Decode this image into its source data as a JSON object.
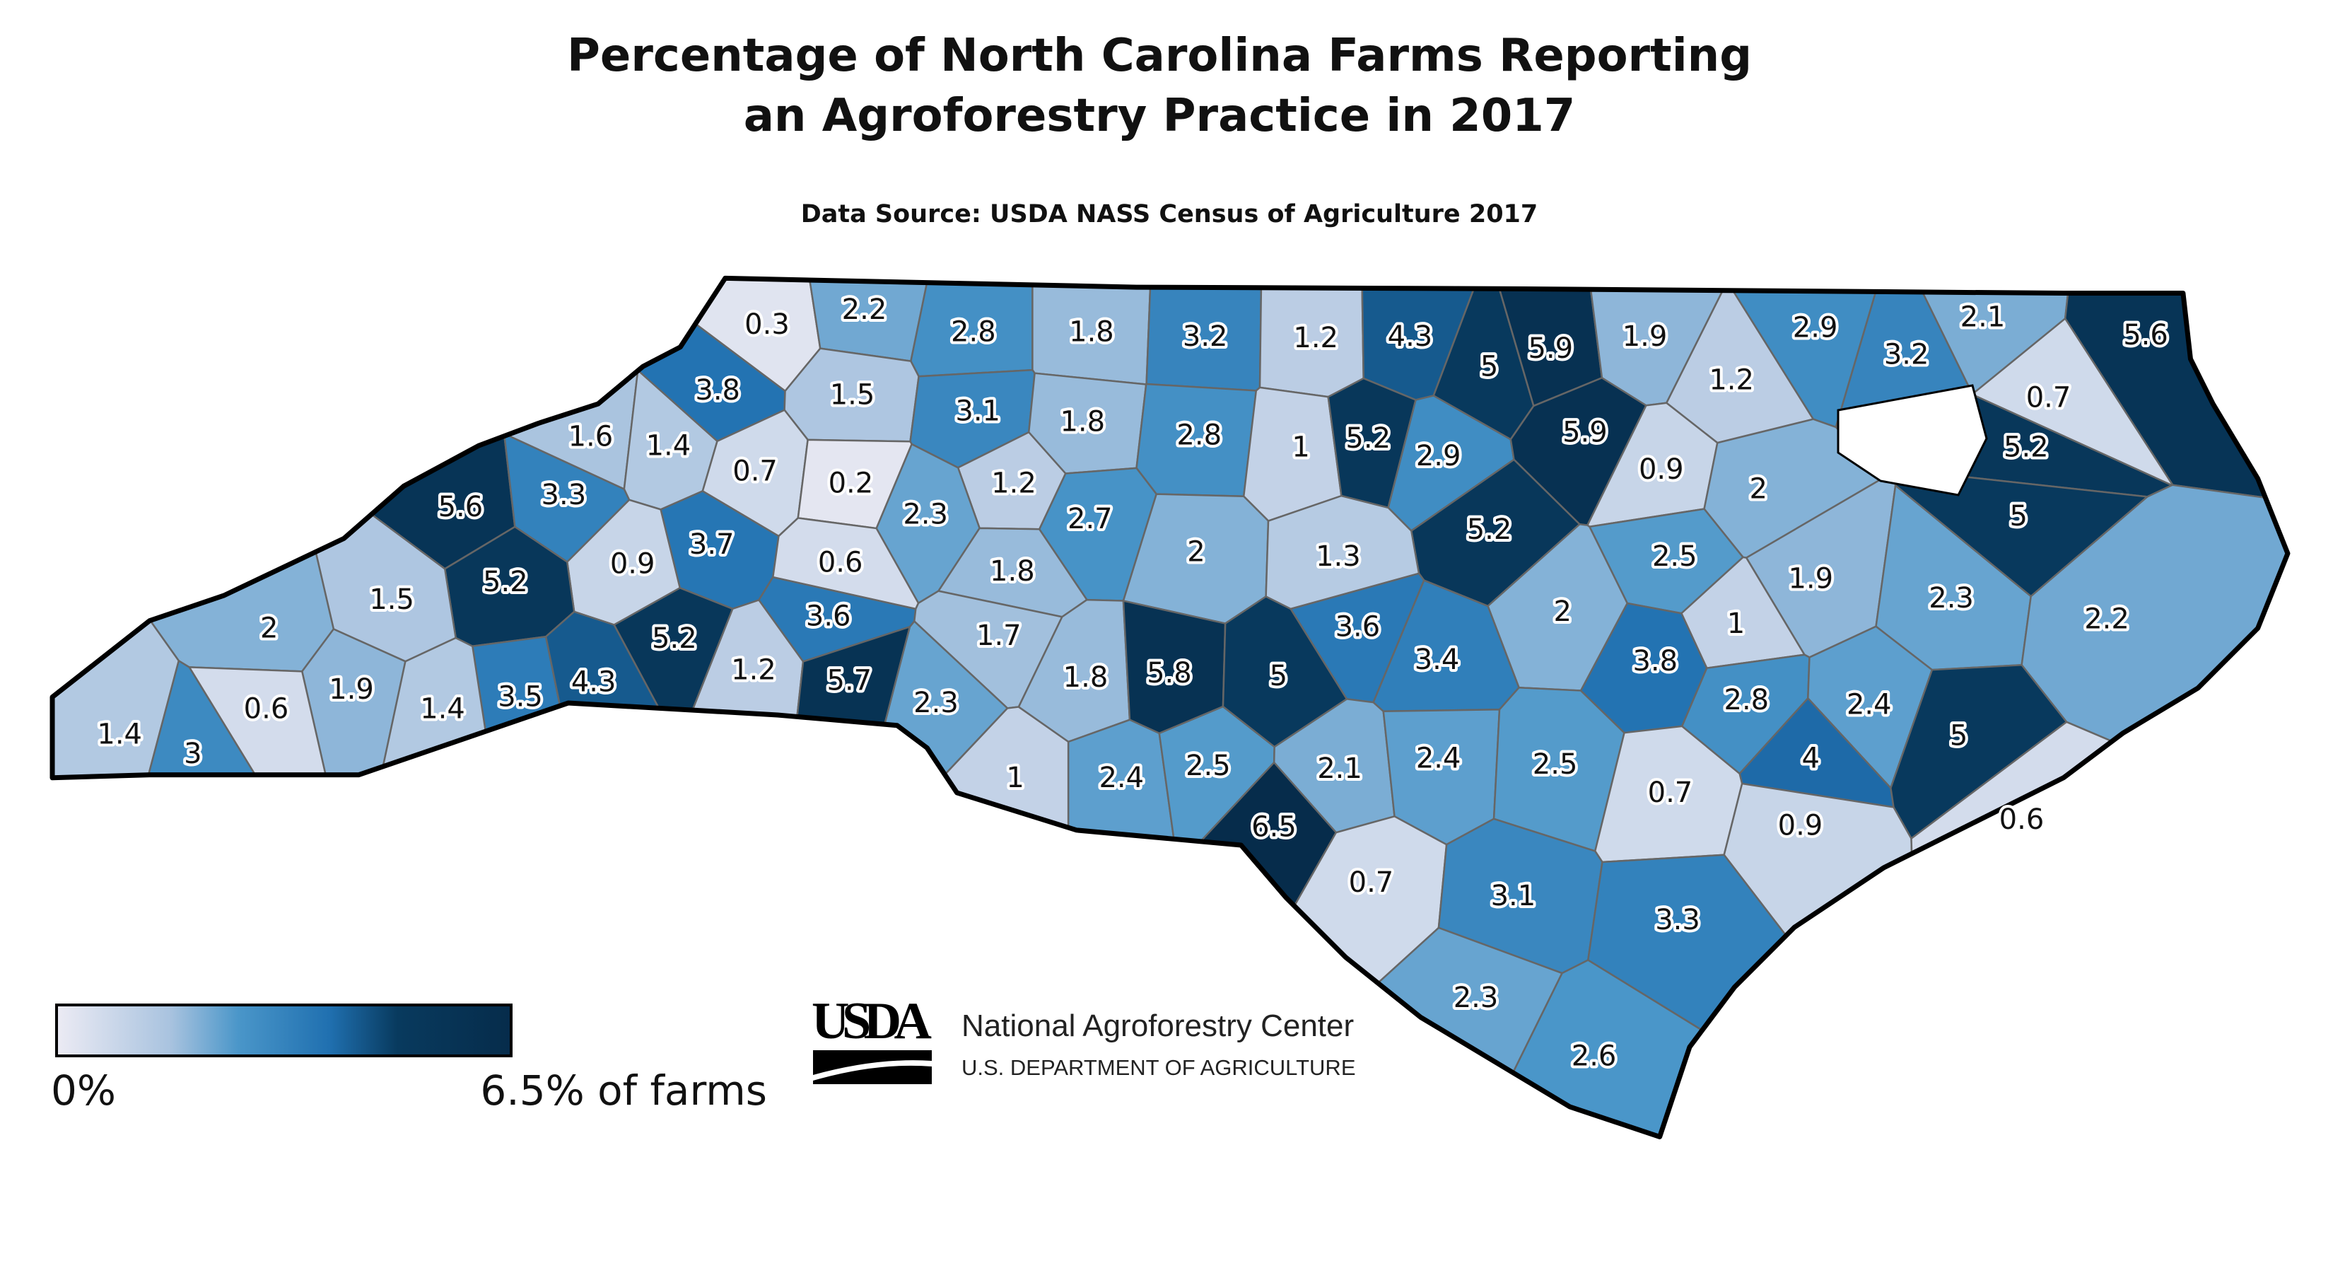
{
  "title_lines": [
    "Percentage of North Carolina Farms Reporting",
    "an Agroforestry Practice in 2017"
  ],
  "source": "Data Source: USDA NASS Census of Agriculture 2017",
  "legend": {
    "min": {
      "value": 0,
      "label": "0%"
    },
    "max": {
      "value": 6.5,
      "label": "6.5% of farms"
    }
  },
  "logo": {
    "mark": "USDA",
    "name": "National Agroforestry Center",
    "department": "U.S. DEPARTMENT OF AGRICULTURE"
  },
  "counties": {
    "values": [
      0.3,
      2.2,
      2.8,
      1.8,
      3.2,
      1.2,
      4.3,
      5,
      5.9,
      1.9,
      1.2,
      2.9,
      2.1,
      3.2,
      5.6,
      0.7,
      5.2,
      3.8,
      1.5,
      3.1,
      1.8,
      2.8,
      1,
      5.2,
      2.9,
      5.9,
      0.9,
      1.6,
      1.4,
      0.7,
      0.2,
      1.2,
      2,
      5.6,
      3.3,
      2.3,
      2.7,
      5.2,
      5,
      0.9,
      3.7,
      0.6,
      1.8,
      2,
      1.3,
      2.5,
      1.9,
      5.2,
      1.5,
      2,
      3.6,
      1.7,
      3.6,
      2,
      1,
      2.3,
      2.2,
      5.2,
      3.4,
      3.8,
      3.5,
      4.3,
      1.2,
      5.7,
      1.9,
      0.6,
      1.4,
      2.3,
      1.8,
      5.8,
      5,
      2.8,
      2.4,
      1.4,
      3,
      1,
      2.4,
      2.5,
      2.1,
      2.4,
      2.5,
      4,
      5,
      6.5,
      0.7,
      0.9,
      0.6,
      0.7,
      3.1,
      3.3,
      2.3,
      2.6
    ]
  }
}
